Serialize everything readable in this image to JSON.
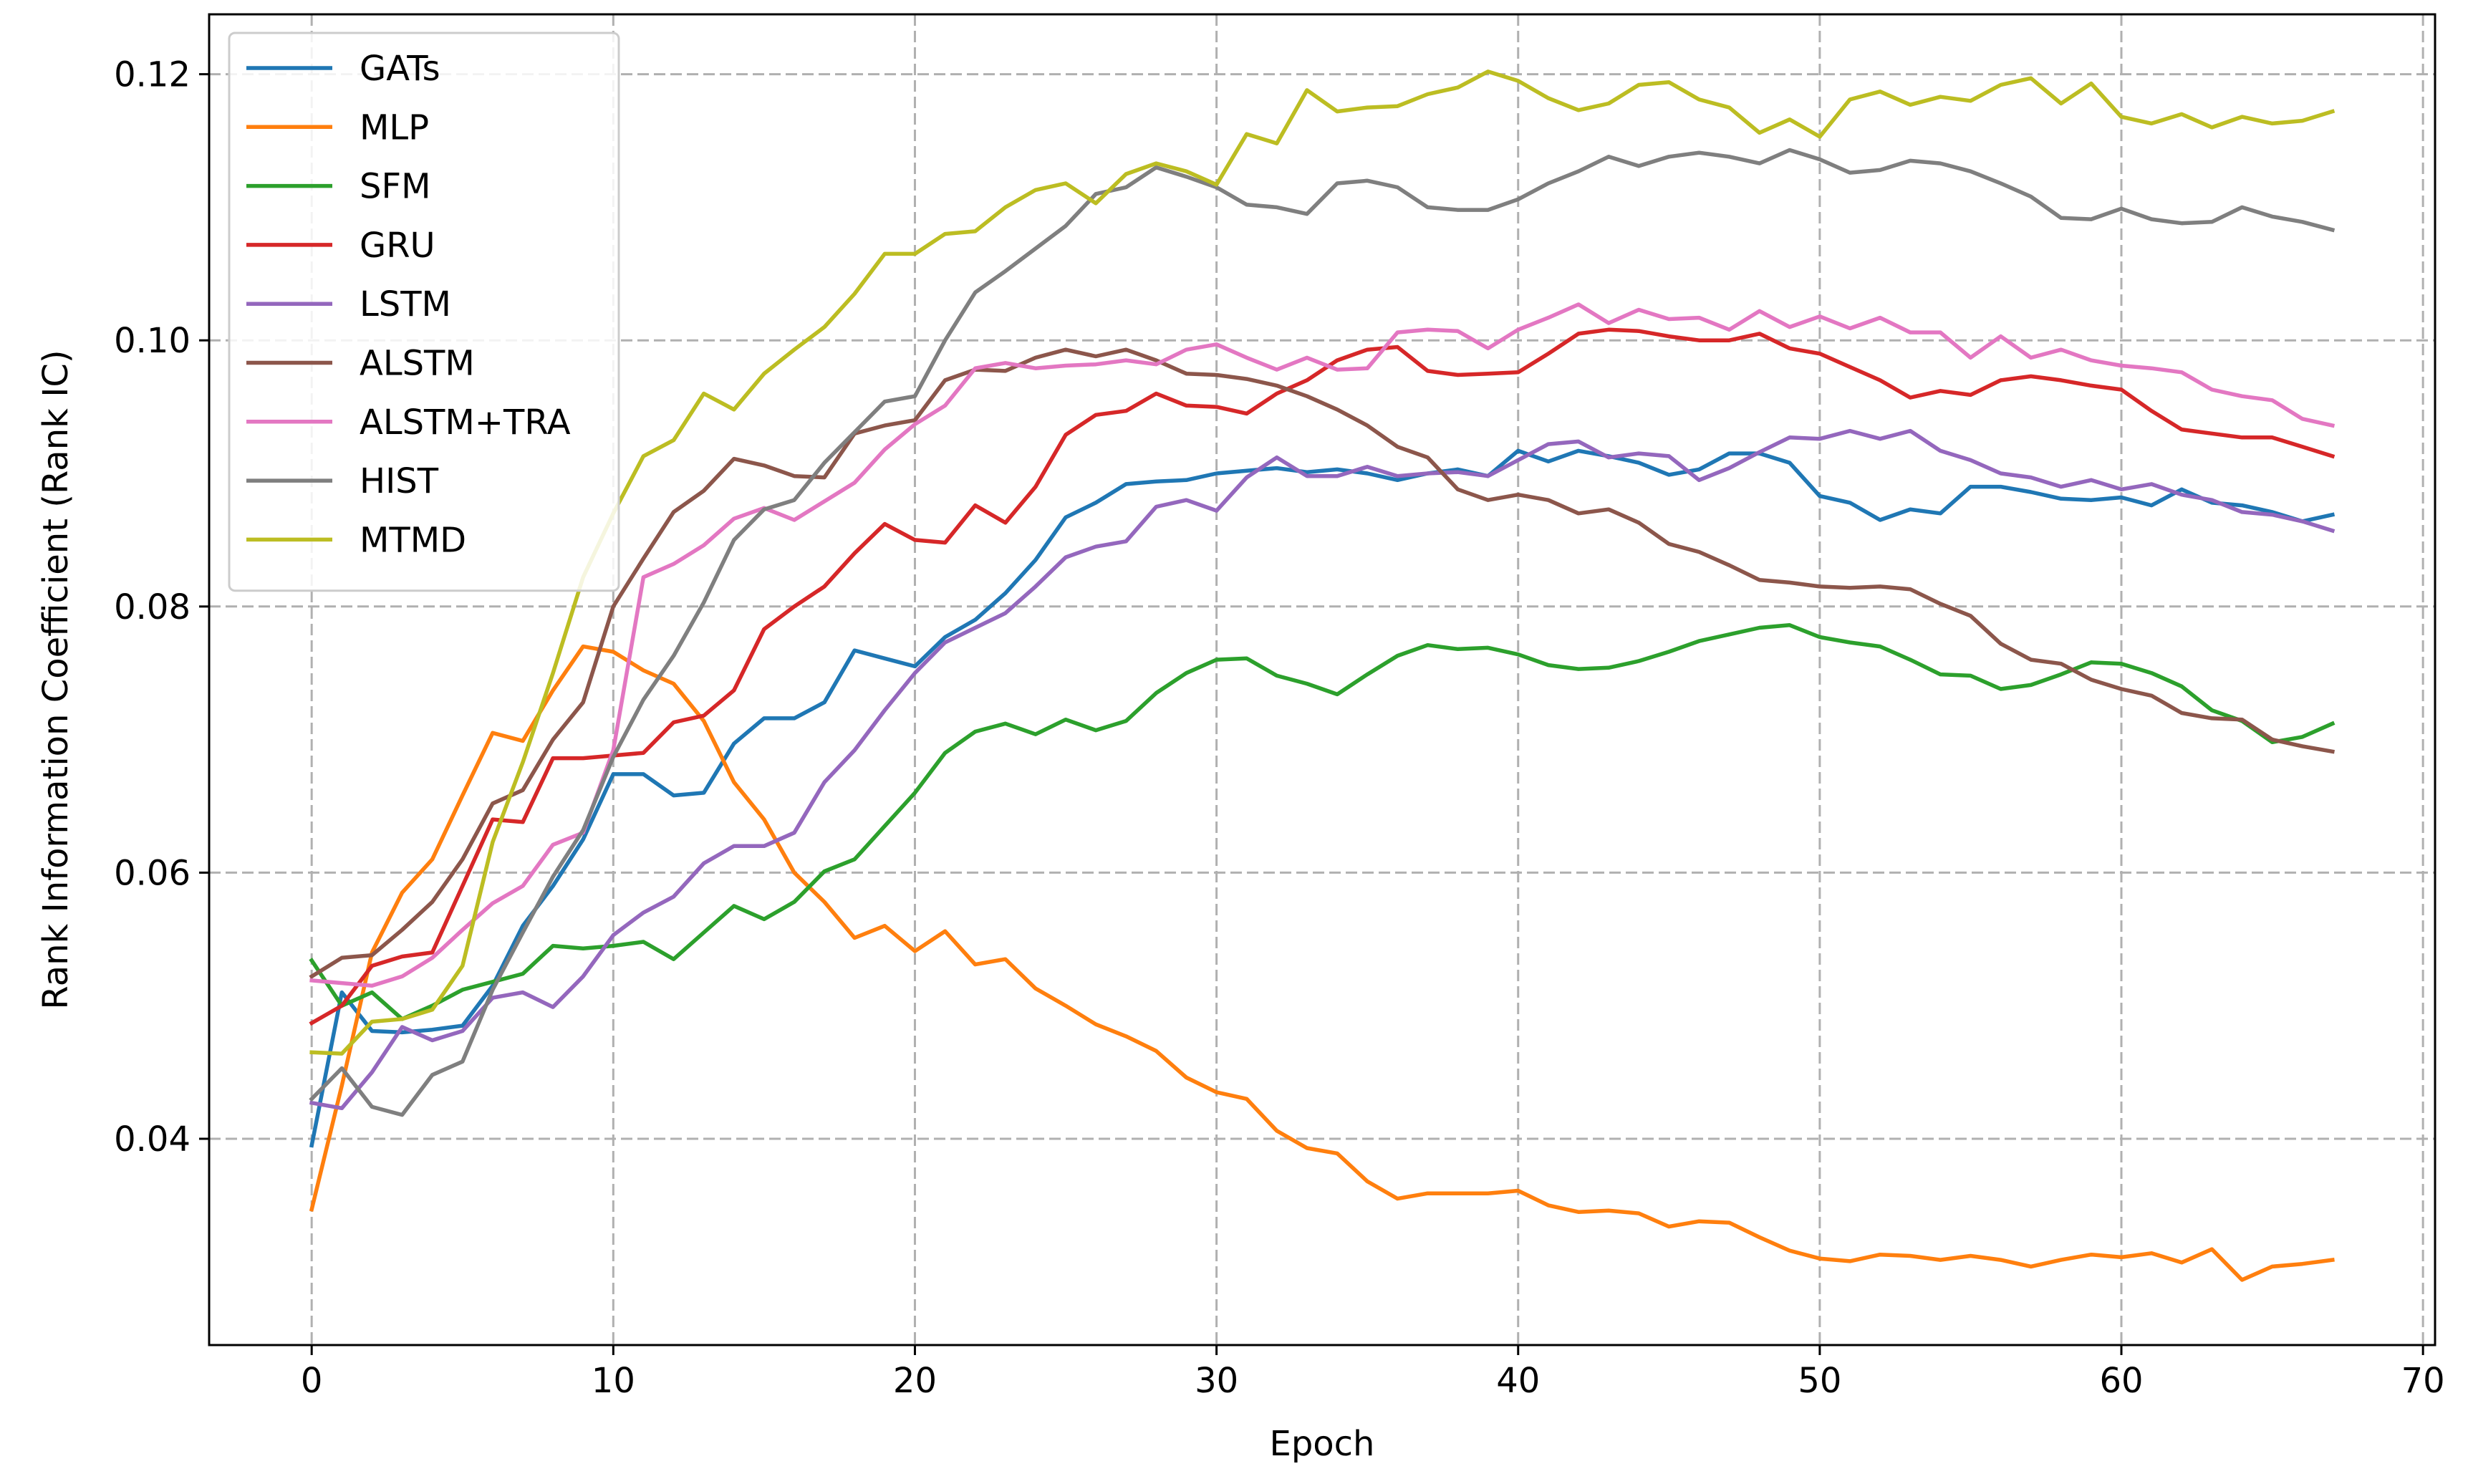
{
  "chart_data": {
    "type": "line",
    "title": "",
    "xlabel": "Epoch",
    "ylabel": "Rank Information Coefficient (Rank IC)",
    "xlim": [
      -3.4,
      70.4
    ],
    "ylim": [
      0.0245,
      0.1245
    ],
    "xticks": [
      0,
      10,
      20,
      30,
      40,
      50,
      60,
      70
    ],
    "yticks": [
      0.04,
      0.06,
      0.08,
      0.1,
      0.12
    ],
    "xtick_labels": [
      "0",
      "10",
      "20",
      "30",
      "40",
      "50",
      "60",
      "70"
    ],
    "ytick_labels": [
      "0.04",
      "0.06",
      "0.08",
      "0.10",
      "0.12"
    ],
    "grid": true,
    "legend_position": "upper-left",
    "x": [
      0,
      1,
      2,
      3,
      4,
      5,
      6,
      7,
      8,
      9,
      10,
      11,
      12,
      13,
      14,
      15,
      16,
      17,
      18,
      19,
      20,
      21,
      22,
      23,
      24,
      25,
      26,
      27,
      28,
      29,
      30,
      31,
      32,
      33,
      34,
      35,
      36,
      37,
      38,
      39,
      40,
      41,
      42,
      43,
      44,
      45,
      46,
      47,
      48,
      49,
      50,
      51,
      52,
      53,
      54,
      55,
      56,
      57,
      58,
      59,
      60,
      61,
      62,
      63,
      64,
      65,
      66,
      67
    ],
    "series": [
      {
        "name": "GATs",
        "color": "#1f77b4",
        "values": [
          0.0395,
          0.051,
          0.0481,
          0.048,
          0.0482,
          0.0485,
          0.0515,
          0.056,
          0.059,
          0.0625,
          0.0674,
          0.0674,
          0.0658,
          0.066,
          0.0697,
          0.0716,
          0.0716,
          0.0728,
          0.0767,
          0.0761,
          0.0755,
          0.0777,
          0.079,
          0.081,
          0.0835,
          0.0867,
          0.0878,
          0.0892,
          0.0894,
          0.0895,
          0.09,
          0.0902,
          0.0904,
          0.0901,
          0.0903,
          0.09,
          0.0895,
          0.09,
          0.0903,
          0.0898,
          0.0917,
          0.0909,
          0.0917,
          0.0913,
          0.0908,
          0.0899,
          0.0903,
          0.0915,
          0.0915,
          0.0908,
          0.0883,
          0.0878,
          0.0865,
          0.0873,
          0.087,
          0.089,
          0.089,
          0.0886,
          0.0881,
          0.088,
          0.0882,
          0.0876,
          0.0888,
          0.0878,
          0.0876,
          0.0871,
          0.0864,
          0.0869
        ]
      },
      {
        "name": "MLP",
        "color": "#ff7f0e",
        "values": [
          0.0347,
          0.044,
          0.054,
          0.0585,
          0.061,
          0.0658,
          0.0705,
          0.0699,
          0.0737,
          0.077,
          0.0766,
          0.0752,
          0.0742,
          0.0714,
          0.0668,
          0.064,
          0.06,
          0.0578,
          0.0551,
          0.056,
          0.0541,
          0.0556,
          0.0531,
          0.0535,
          0.0513,
          0.05,
          0.0486,
          0.0477,
          0.0466,
          0.0446,
          0.0435,
          0.043,
          0.0406,
          0.0393,
          0.0389,
          0.0368,
          0.0355,
          0.0359,
          0.0359,
          0.0359,
          0.0361,
          0.035,
          0.0345,
          0.0346,
          0.0344,
          0.0334,
          0.0338,
          0.0337,
          0.0326,
          0.0316,
          0.031,
          0.0308,
          0.0313,
          0.0312,
          0.0309,
          0.0312,
          0.0309,
          0.0304,
          0.0309,
          0.0313,
          0.0311,
          0.0314,
          0.0307,
          0.0317,
          0.0294,
          0.0304,
          0.0306,
          0.0309
        ]
      },
      {
        "name": "SFM",
        "color": "#2ca02c",
        "values": [
          0.0534,
          0.05,
          0.051,
          0.049,
          0.05,
          0.0512,
          0.0518,
          0.0524,
          0.0545,
          0.0543,
          0.0545,
          0.0548,
          0.0535,
          0.0555,
          0.0575,
          0.0565,
          0.0578,
          0.0601,
          0.061,
          0.0635,
          0.066,
          0.069,
          0.0706,
          0.0712,
          0.0704,
          0.0715,
          0.0707,
          0.0714,
          0.0735,
          0.075,
          0.076,
          0.0761,
          0.0748,
          0.0742,
          0.0734,
          0.0749,
          0.0763,
          0.0771,
          0.0768,
          0.0769,
          0.0764,
          0.0756,
          0.0753,
          0.0754,
          0.0759,
          0.0766,
          0.0774,
          0.0779,
          0.0784,
          0.0786,
          0.0777,
          0.0773,
          0.077,
          0.076,
          0.0749,
          0.0748,
          0.0738,
          0.0741,
          0.0749,
          0.0758,
          0.0757,
          0.075,
          0.074,
          0.0722,
          0.0714,
          0.0698,
          0.0702,
          0.0712
        ]
      },
      {
        "name": "GRU",
        "color": "#d62728",
        "values": [
          0.0487,
          0.05,
          0.053,
          0.0537,
          0.054,
          0.059,
          0.064,
          0.0638,
          0.0686,
          0.0686,
          0.0688,
          0.069,
          0.0713,
          0.0718,
          0.0737,
          0.0783,
          0.08,
          0.0815,
          0.084,
          0.0862,
          0.085,
          0.0848,
          0.0876,
          0.0863,
          0.089,
          0.0929,
          0.0944,
          0.0947,
          0.096,
          0.0951,
          0.095,
          0.0945,
          0.096,
          0.097,
          0.0985,
          0.0993,
          0.0995,
          0.0977,
          0.0974,
          0.0975,
          0.0976,
          0.099,
          0.1005,
          0.1008,
          0.1007,
          0.1003,
          0.1,
          0.1,
          0.1005,
          0.0994,
          0.099,
          0.098,
          0.097,
          0.0957,
          0.0962,
          0.0959,
          0.097,
          0.0973,
          0.097,
          0.0966,
          0.0963,
          0.0947,
          0.0933,
          0.093,
          0.0927,
          0.0927,
          0.092,
          0.0913
        ]
      },
      {
        "name": "LSTM",
        "color": "#9467bd",
        "values": [
          0.0427,
          0.0423,
          0.045,
          0.0484,
          0.0474,
          0.0481,
          0.0506,
          0.051,
          0.0499,
          0.0522,
          0.0553,
          0.057,
          0.0582,
          0.0607,
          0.062,
          0.062,
          0.063,
          0.0668,
          0.0692,
          0.0722,
          0.075,
          0.0773,
          0.0784,
          0.0795,
          0.0815,
          0.0837,
          0.0845,
          0.0849,
          0.0875,
          0.088,
          0.0872,
          0.0897,
          0.0912,
          0.0898,
          0.0898,
          0.0905,
          0.0898,
          0.09,
          0.0901,
          0.0898,
          0.091,
          0.0922,
          0.0924,
          0.0912,
          0.0915,
          0.0913,
          0.0895,
          0.0904,
          0.0916,
          0.0927,
          0.0926,
          0.0932,
          0.0926,
          0.0932,
          0.0917,
          0.091,
          0.09,
          0.0897,
          0.089,
          0.0895,
          0.0888,
          0.0892,
          0.0884,
          0.088,
          0.0871,
          0.0869,
          0.0864,
          0.0857
        ]
      },
      {
        "name": "ALSTM",
        "color": "#8c564b",
        "values": [
          0.0522,
          0.0536,
          0.0538,
          0.0557,
          0.0578,
          0.061,
          0.0652,
          0.0662,
          0.07,
          0.0728,
          0.08,
          0.0836,
          0.0871,
          0.0887,
          0.0911,
          0.0906,
          0.0898,
          0.0897,
          0.093,
          0.0936,
          0.094,
          0.097,
          0.0978,
          0.0977,
          0.0987,
          0.0993,
          0.0988,
          0.0993,
          0.0985,
          0.0975,
          0.0974,
          0.0971,
          0.0966,
          0.0958,
          0.0948,
          0.0936,
          0.092,
          0.0912,
          0.0888,
          0.088,
          0.0884,
          0.088,
          0.087,
          0.0873,
          0.0863,
          0.0847,
          0.0841,
          0.0831,
          0.082,
          0.0818,
          0.0815,
          0.0814,
          0.0815,
          0.0813,
          0.0802,
          0.0793,
          0.0772,
          0.076,
          0.0757,
          0.0745,
          0.0738,
          0.0733,
          0.072,
          0.0716,
          0.0715,
          0.07,
          0.0695,
          0.0691
        ]
      },
      {
        "name": "ALSTM+TRA",
        "color": "#e377c2",
        "values": [
          0.0519,
          0.0517,
          0.0515,
          0.0522,
          0.0536,
          0.0557,
          0.0577,
          0.059,
          0.0621,
          0.063,
          0.0692,
          0.0822,
          0.0832,
          0.0846,
          0.0866,
          0.0874,
          0.0865,
          0.0879,
          0.0893,
          0.0918,
          0.0937,
          0.0951,
          0.0979,
          0.0983,
          0.0979,
          0.0981,
          0.0982,
          0.0985,
          0.0982,
          0.0993,
          0.0997,
          0.0987,
          0.0978,
          0.0987,
          0.0978,
          0.0979,
          0.1006,
          0.1008,
          0.1007,
          0.0994,
          0.1008,
          0.1017,
          0.1027,
          0.1013,
          0.1023,
          0.1016,
          0.1017,
          0.1008,
          0.1022,
          0.101,
          0.1018,
          0.1009,
          0.1017,
          0.1006,
          0.1006,
          0.0987,
          0.1003,
          0.0987,
          0.0993,
          0.0985,
          0.0981,
          0.0979,
          0.0976,
          0.0963,
          0.0958,
          0.0955,
          0.0941,
          0.0936
        ]
      },
      {
        "name": "HIST",
        "color": "#7f7f7f",
        "values": [
          0.043,
          0.0453,
          0.0424,
          0.0418,
          0.0448,
          0.0458,
          0.0512,
          0.0555,
          0.0597,
          0.0632,
          0.0687,
          0.073,
          0.0763,
          0.0803,
          0.085,
          0.0873,
          0.088,
          0.0908,
          0.0931,
          0.0954,
          0.0958,
          0.1,
          0.1036,
          0.1052,
          0.1069,
          0.1086,
          0.111,
          0.1115,
          0.113,
          0.1123,
          0.1115,
          0.1102,
          0.11,
          0.1095,
          0.1118,
          0.112,
          0.1115,
          0.11,
          0.1098,
          0.1098,
          0.1106,
          0.1118,
          0.1127,
          0.1138,
          0.1131,
          0.1138,
          0.1141,
          0.1138,
          0.1133,
          0.1143,
          0.1136,
          0.1126,
          0.1128,
          0.1135,
          0.1133,
          0.1127,
          0.1118,
          0.1108,
          0.1092,
          0.1091,
          0.1099,
          0.1091,
          0.1088,
          0.1089,
          0.11,
          0.1093,
          0.1089,
          0.1083
        ]
      },
      {
        "name": "MTMD",
        "color": "#bcbd22",
        "values": [
          0.0465,
          0.0464,
          0.0488,
          0.049,
          0.0497,
          0.053,
          0.0623,
          0.0683,
          0.075,
          0.0822,
          0.087,
          0.0913,
          0.0925,
          0.096,
          0.0948,
          0.0975,
          0.0993,
          0.101,
          0.1035,
          0.1065,
          0.1065,
          0.108,
          0.1082,
          0.11,
          0.1113,
          0.1118,
          0.1103,
          0.1125,
          0.1133,
          0.1127,
          0.1117,
          0.1155,
          0.1148,
          0.1188,
          0.1172,
          0.1175,
          0.1176,
          0.1185,
          0.119,
          0.1202,
          0.1195,
          0.1182,
          0.1173,
          0.1178,
          0.1192,
          0.1194,
          0.1181,
          0.1175,
          0.1156,
          0.1166,
          0.1153,
          0.1181,
          0.1187,
          0.1177,
          0.1183,
          0.118,
          0.1192,
          0.1197,
          0.1178,
          0.1193,
          0.1168,
          0.1163,
          0.117,
          0.116,
          0.1168,
          0.1163,
          0.1165,
          0.1172
        ]
      }
    ]
  }
}
